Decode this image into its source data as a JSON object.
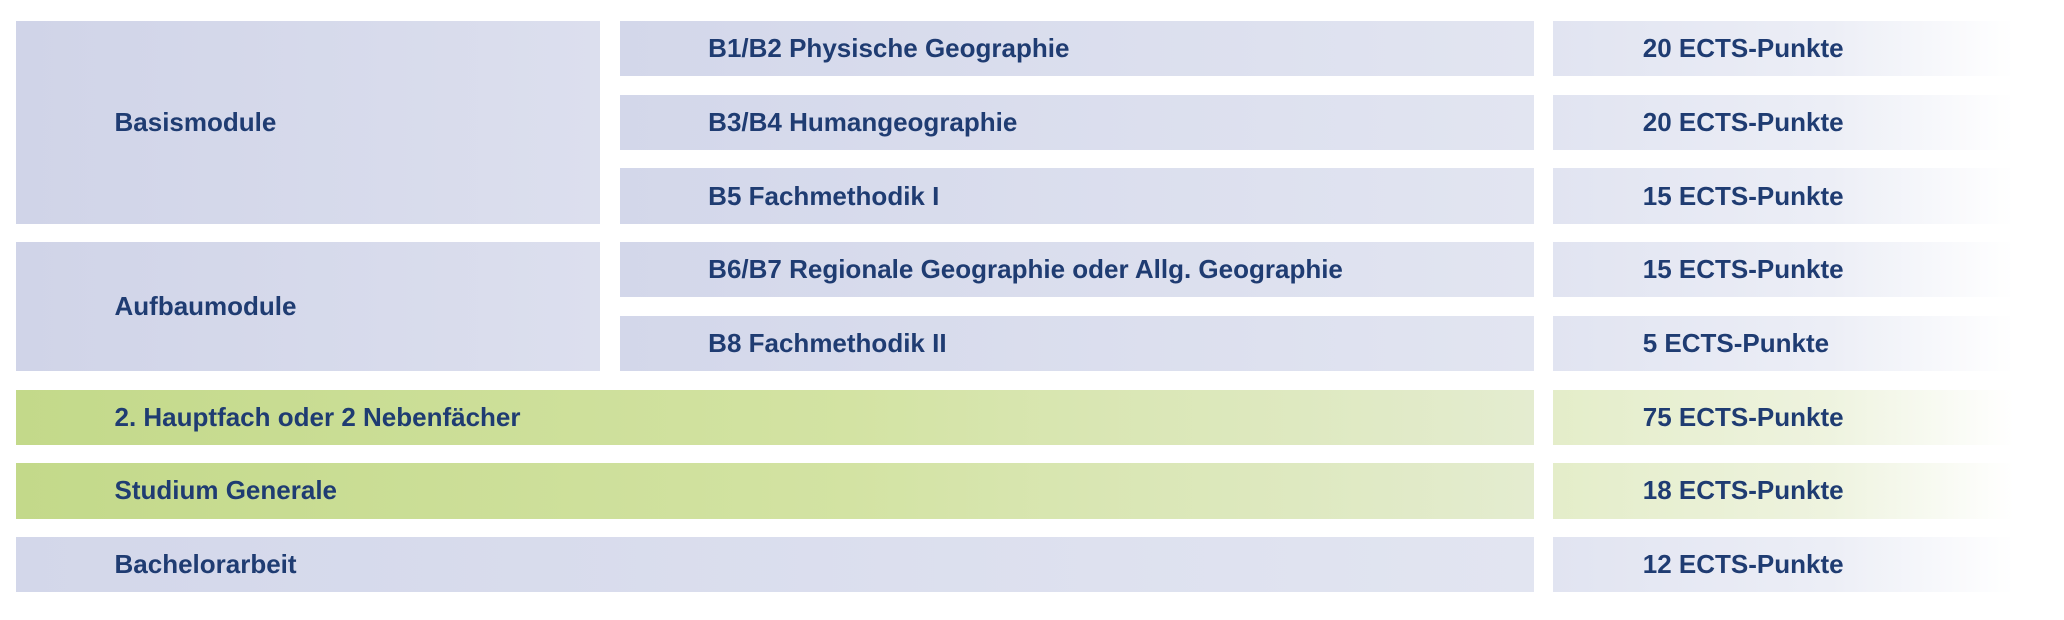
{
  "groups": [
    {
      "label": "Basismodule",
      "modules": [
        {
          "name": "B1/B2 Physische Geographie",
          "ects": "20 ECTS-Punkte"
        },
        {
          "name": "B3/B4 Humangeographie",
          "ects": "20 ECTS-Punkte"
        },
        {
          "name": "B5 Fachmethodik I",
          "ects": "15 ECTS-Punkte"
        }
      ]
    },
    {
      "label": "Aufbaumodule",
      "modules": [
        {
          "name": "B6/B7 Regionale Geographie oder Allg. Geographie",
          "ects": "15 ECTS-Punkte"
        },
        {
          "name": "B8 Fachmethodik II",
          "ects": "5 ECTS-Punkte"
        }
      ]
    }
  ],
  "rows": [
    {
      "label": "2. Hauptfach oder 2 Nebenfächer",
      "ects": "75 ECTS-Punkte",
      "color": "green"
    },
    {
      "label": "Studium Generale",
      "ects": "18 ECTS-Punkte",
      "color": "green"
    },
    {
      "label": "Bachelorarbeit",
      "ects": "12 ECTS-Punkte",
      "color": "blue"
    }
  ]
}
